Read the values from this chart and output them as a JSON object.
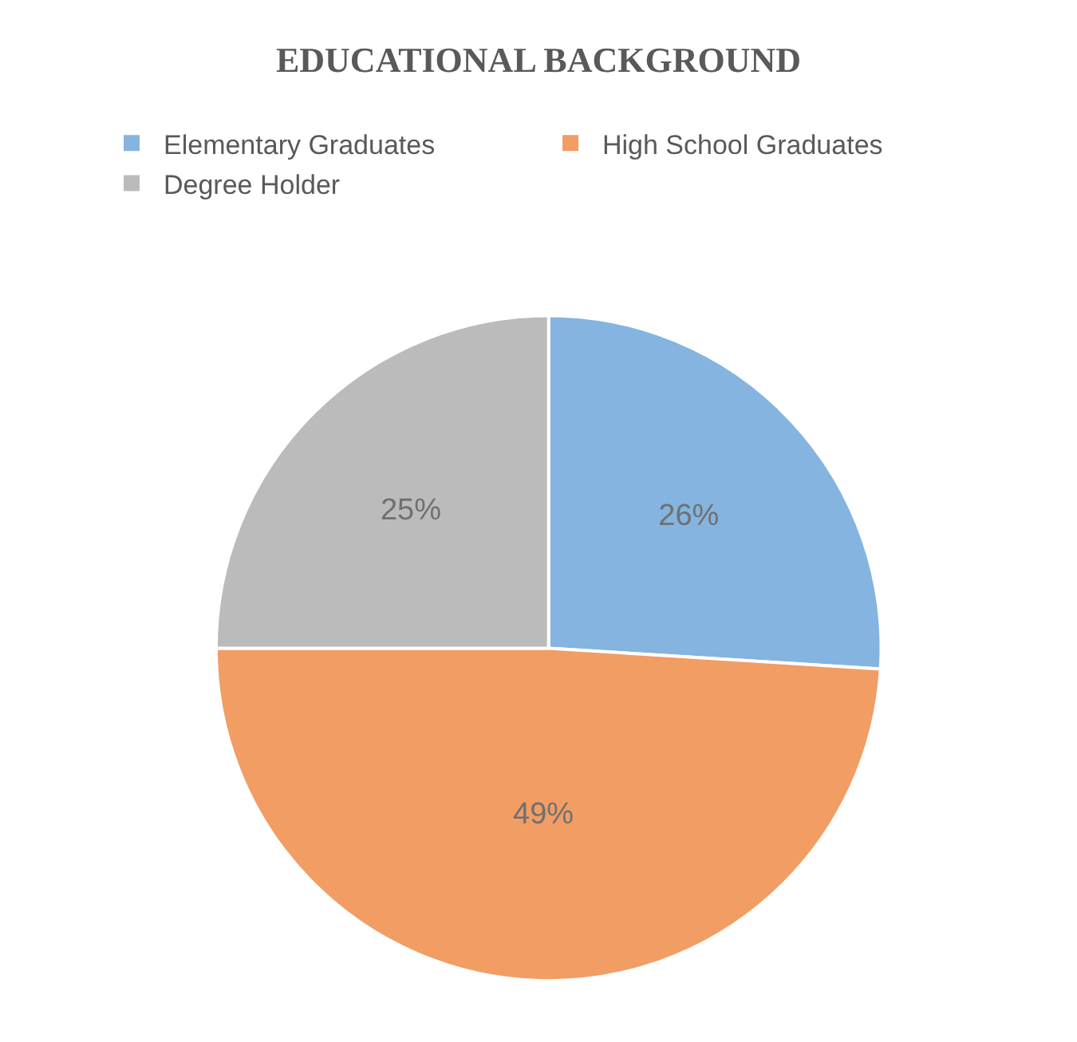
{
  "chart_data": {
    "type": "pie",
    "title": "EDUCATIONAL BACKGROUND",
    "categories": [
      "Elementary Graduates",
      "High School Graduates",
      "Degree Holder"
    ],
    "values": [
      26,
      49,
      25
    ],
    "colors": [
      "#5b9bd5",
      "#ed7d31",
      "#a5a5a5"
    ],
    "value_labels": [
      "26%",
      "49%",
      "25%"
    ],
    "legend": "top"
  }
}
